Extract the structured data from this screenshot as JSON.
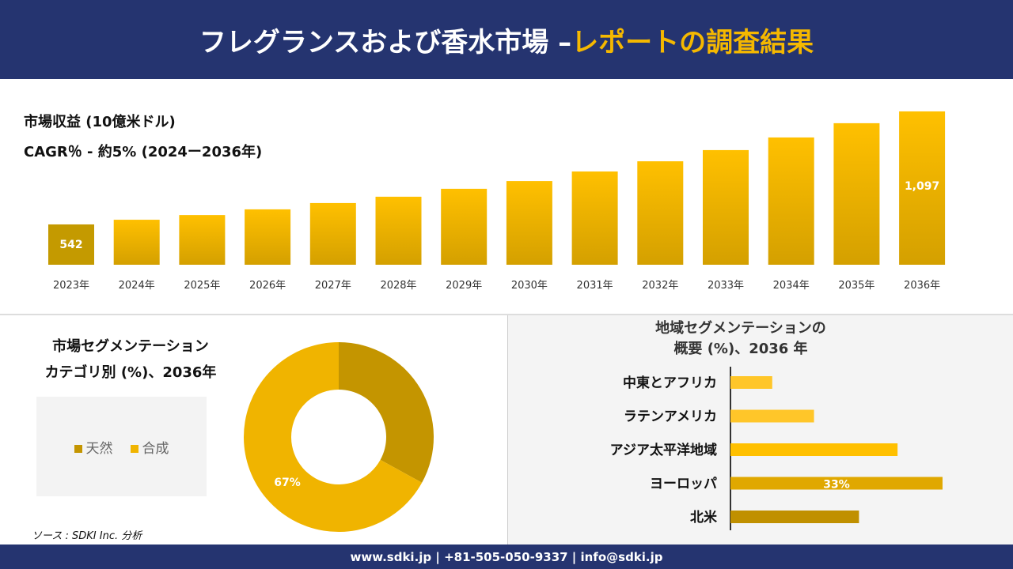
{
  "header": {
    "title": "フレグランスおよび香水市場 –",
    "title_accent": "レポートの調査結果"
  },
  "revenue": {
    "title": "市場収益 (10億米ドル)",
    "cagr": "CAGR％ - 約5% (2024ー2036年)"
  },
  "chart_data": [
    {
      "type": "bar",
      "title": "市場収益 (10億米ドル)",
      "categories": [
        "2023年",
        "2024年",
        "2025年",
        "2026年",
        "2027年",
        "2028年",
        "2029年",
        "2030年",
        "2031年",
        "2032年",
        "2033年",
        "2034年",
        "2035年",
        "2036年"
      ],
      "values": [
        542,
        565,
        588,
        616,
        647,
        678,
        717,
        755,
        802,
        852,
        907,
        969,
        1039,
        1097
      ],
      "data_labels": {
        "0": "542",
        "13": "1,097"
      },
      "colors": {
        "dark": "#C49A00",
        "light": "#FFC000"
      }
    },
    {
      "type": "pie",
      "title": "市場セグメンテーション カテゴリ別 (%)、2036年",
      "series": [
        {
          "name": "天然",
          "value": 33,
          "color": "#C49500"
        },
        {
          "name": "合成",
          "value": 67,
          "color": "#F0B400"
        }
      ],
      "data_labels": {
        "合成": "67%"
      },
      "legend": "left",
      "donut": true
    },
    {
      "type": "bar",
      "orientation": "horizontal",
      "title": "地域セグメンテーションの概要 (%)、2036 年",
      "categories": [
        "中東とアフリカ",
        "ラテンアメリカ",
        "アジア太平洋地域",
        "ヨーロッパ",
        "北米"
      ],
      "values": [
        6.5,
        13,
        26,
        33,
        20
      ],
      "data_labels": {
        "ヨーロッパ": "33%"
      },
      "colors": [
        "#FFC629",
        "#FFC629",
        "#FFC000",
        "#E0A800",
        "#C09000"
      ]
    }
  ],
  "segment": {
    "title_line1": "市場セグメンテーション",
    "title_line2": "カテゴリ別 (%)、2036年"
  },
  "region": {
    "title_line1": "地域セグメンテーションの",
    "title_line2": "概要 (%)、2036 年"
  },
  "source": "ソース : SDKI Inc. 分析",
  "footer": "www.sdki.jp | +81-505-050-9337 | info@sdki.jp"
}
